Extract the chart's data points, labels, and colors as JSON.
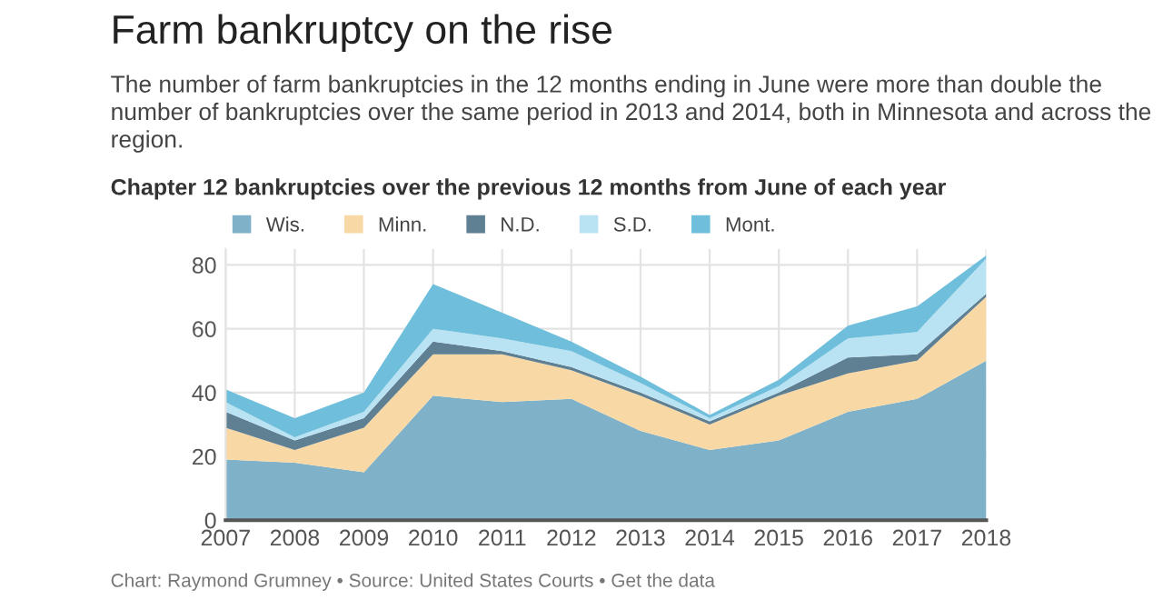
{
  "chart_data": {
    "type": "area",
    "stacked": true,
    "title": "Farm bankruptcy on the rise",
    "subtitle": "The number of farm bankruptcies in the 12 months ending in June were more than double the number of bankruptcies over the same period in 2013 and 2014, both in Minnesota and across the region.",
    "annotations": [
      "Chapter 12 bankruptcies over the previous 12 months from June of each year",
      "Chart: Raymond Grumney • Source: United States Courts • Get the data"
    ],
    "categories": [
      "2007",
      "2008",
      "2009",
      "2010",
      "2011",
      "2012",
      "2013",
      "2014",
      "2015",
      "2016",
      "2017",
      "2018"
    ],
    "series": [
      {
        "name": "Wis.",
        "color": "#7fb2c8",
        "values": [
          19,
          18,
          15,
          39,
          37,
          38,
          28,
          22,
          25,
          34,
          38,
          50
        ]
      },
      {
        "name": "Minn.",
        "color": "#f8d9a6",
        "values": [
          10,
          4,
          14,
          13,
          15,
          9,
          11,
          8,
          14,
          12,
          12,
          20
        ]
      },
      {
        "name": "N.D.",
        "color": "#5f7f92",
        "values": [
          5,
          3,
          3,
          4,
          1,
          1,
          1,
          1,
          1,
          5,
          2,
          1
        ]
      },
      {
        "name": "S.D.",
        "color": "#b9e3f2",
        "values": [
          3,
          1,
          2,
          4,
          4,
          5,
          3,
          1,
          2,
          6,
          7,
          11
        ]
      },
      {
        "name": "Mont.",
        "color": "#6fbfdc",
        "values": [
          4,
          6,
          6,
          14,
          8,
          3,
          2,
          1,
          2,
          4,
          8,
          1
        ]
      }
    ],
    "ylim": [
      0,
      85
    ],
    "yticks": [
      0,
      20,
      40,
      60,
      80
    ],
    "grid": true,
    "legend": "top left"
  }
}
